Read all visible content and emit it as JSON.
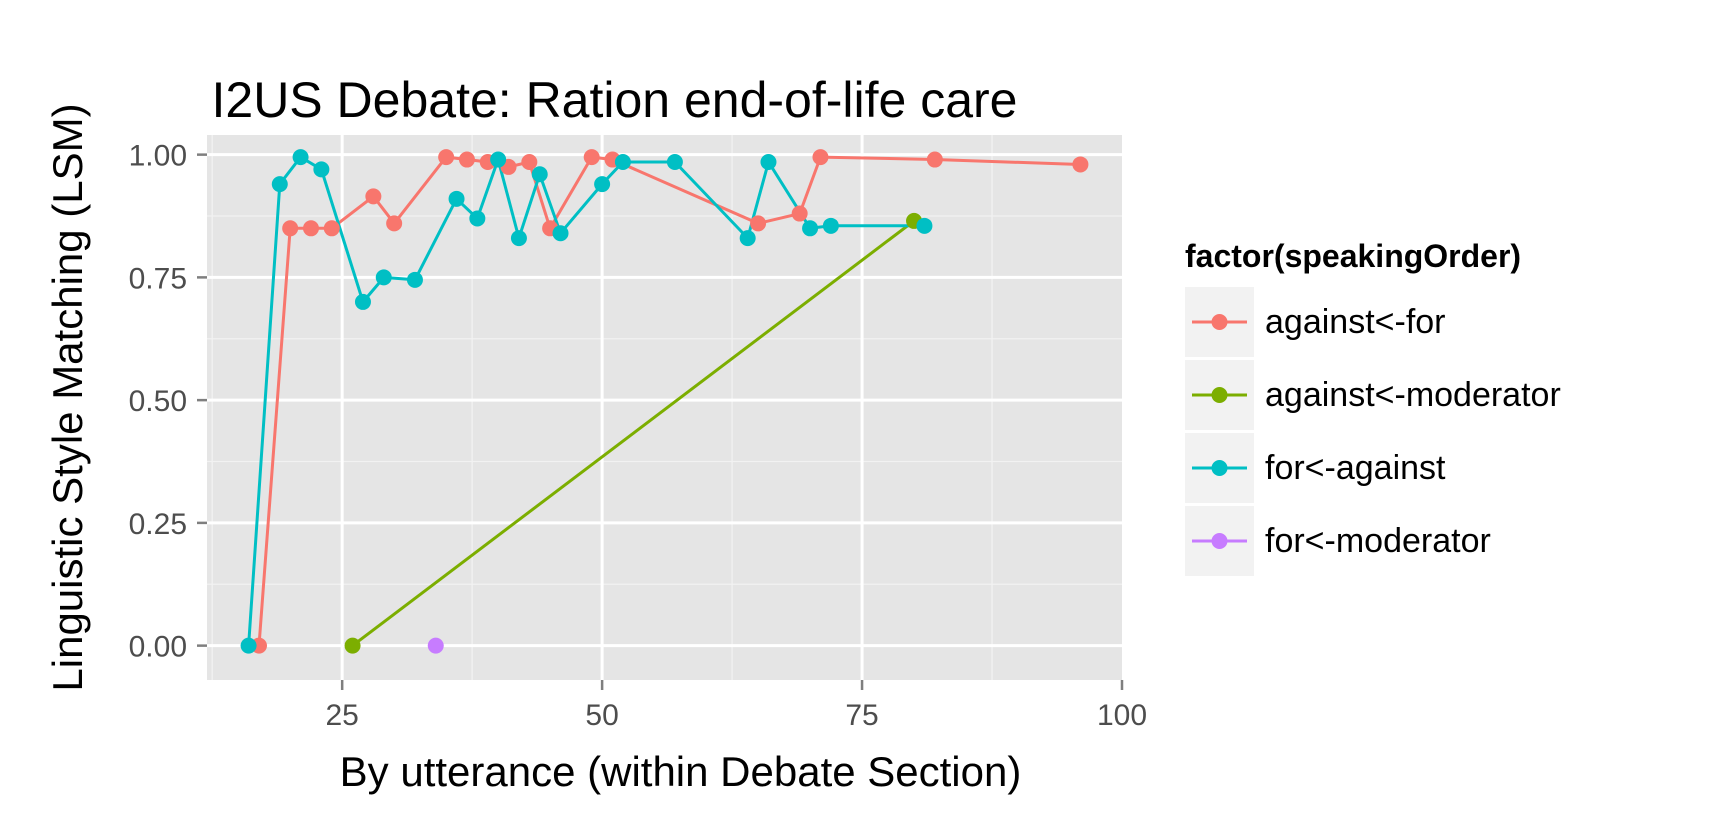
{
  "chart_data": {
    "type": "line",
    "title": "I2US Debate: Ration end-of-life care",
    "xlabel": "By utterance (within Debate Section)",
    "ylabel": "Linguistic Style Matching (LSM)",
    "xlim": [
      12,
      100
    ],
    "ylim": [
      -0.07,
      1.04
    ],
    "x_ticks": [
      25,
      50,
      75,
      100
    ],
    "x_tick_labels": [
      "25",
      "50",
      "75",
      "100"
    ],
    "y_ticks": [
      0,
      0.25,
      0.5,
      0.75,
      1.0
    ],
    "y_tick_labels": [
      "0.00",
      "0.25",
      "0.50",
      "0.75",
      "1.00"
    ],
    "grid": true,
    "legend": {
      "title": "factor(speakingOrder)",
      "position": "right"
    },
    "series": [
      {
        "name": "against<-for",
        "color": "#F8766D",
        "points": [
          [
            17,
            0.0
          ],
          [
            20,
            0.85
          ],
          [
            22,
            0.85
          ],
          [
            24,
            0.85
          ],
          [
            28,
            0.915
          ],
          [
            30,
            0.86
          ],
          [
            35,
            0.995
          ],
          [
            37,
            0.99
          ],
          [
            39,
            0.985
          ],
          [
            41,
            0.975
          ],
          [
            43,
            0.985
          ],
          [
            45,
            0.85
          ],
          [
            49,
            0.995
          ],
          [
            51,
            0.99
          ],
          [
            65,
            0.86
          ],
          [
            69,
            0.88
          ],
          [
            71,
            0.995
          ],
          [
            82,
            0.99
          ],
          [
            96,
            0.98
          ]
        ]
      },
      {
        "name": "against<-moderator",
        "color": "#7CAE00",
        "points": [
          [
            26,
            0.0
          ],
          [
            80,
            0.865
          ]
        ]
      },
      {
        "name": "for<-against",
        "color": "#00BFC4",
        "points": [
          [
            16,
            0.0
          ],
          [
            19,
            0.94
          ],
          [
            21,
            0.995
          ],
          [
            23,
            0.97
          ],
          [
            27,
            0.7
          ],
          [
            29,
            0.75
          ],
          [
            32,
            0.745
          ],
          [
            36,
            0.91
          ],
          [
            38,
            0.87
          ],
          [
            40,
            0.99
          ],
          [
            42,
            0.83
          ],
          [
            44,
            0.96
          ],
          [
            46,
            0.84
          ],
          [
            50,
            0.94
          ],
          [
            52,
            0.985
          ],
          [
            57,
            0.985
          ],
          [
            64,
            0.83
          ],
          [
            66,
            0.985
          ],
          [
            70,
            0.85
          ],
          [
            72,
            0.855
          ],
          [
            81,
            0.855
          ]
        ]
      },
      {
        "name": "for<-moderator",
        "color": "#C77CFF",
        "points": [
          [
            34,
            0.0
          ]
        ]
      }
    ]
  }
}
